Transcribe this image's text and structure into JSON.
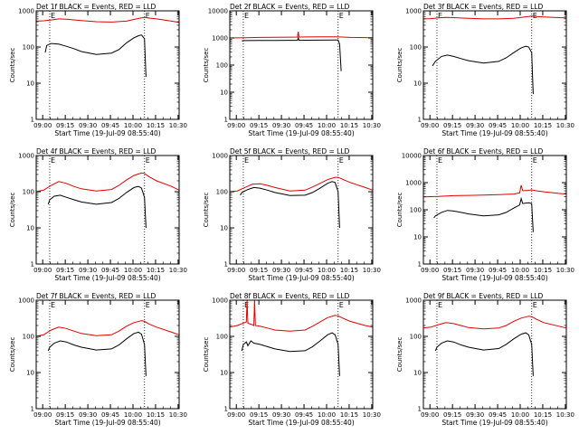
{
  "figure": {
    "start_time_label": "Start Time (19-Jul-09 08:55:40)",
    "ylabel": "Counts/sec",
    "marker": "E"
  },
  "colors": {
    "events": "#000000",
    "lld": "#e00000",
    "axis": "#000000"
  },
  "chart_data": [
    {
      "type": "line",
      "title": "Det 1f BLACK = Events, RED = LLD",
      "xlabel": "Start Time (19-Jul-09 08:55:40)",
      "ylabel": "Counts/sec",
      "xticks": [
        "09:00",
        "09:15",
        "09:30",
        "09:45",
        "10:00",
        "10:15",
        "10:30"
      ],
      "xlim_minutes": [
        0,
        95
      ],
      "yscale": "log",
      "ylim": [
        1,
        1000
      ],
      "yticks": [
        "1",
        "10",
        "100",
        "1000"
      ],
      "event_markers_minutes": [
        9,
        72
      ],
      "series": [
        {
          "name": "Events",
          "color": "#000000",
          "x": [
            6,
            7,
            10,
            15,
            20,
            25,
            30,
            40,
            50,
            55,
            60,
            65,
            68,
            70,
            72,
            73
          ],
          "y": [
            70,
            110,
            125,
            120,
            105,
            90,
            75,
            62,
            68,
            85,
            130,
            180,
            205,
            215,
            170,
            15
          ]
        },
        {
          "name": "LLD",
          "color": "#e00000",
          "x": [
            0,
            5,
            10,
            15,
            20,
            30,
            40,
            50,
            60,
            65,
            70,
            72,
            75,
            80,
            90,
            95
          ],
          "y": [
            520,
            530,
            560,
            600,
            590,
            540,
            500,
            490,
            520,
            580,
            640,
            660,
            630,
            600,
            520,
            480
          ]
        }
      ]
    },
    {
      "type": "line",
      "title": "Det 2f BLACK = Events, RED = LLD",
      "xlabel": "Start Time (19-Jul-09 08:55:40)",
      "ylabel": "Counts/sec",
      "xticks": [
        "09:00",
        "09:15",
        "09:30",
        "09:45",
        "10:00",
        "10:15",
        "10:30"
      ],
      "xlim_minutes": [
        0,
        95
      ],
      "yscale": "log",
      "ylim": [
        1,
        10000
      ],
      "yticks": [
        "1",
        "10",
        "100",
        "1000",
        "10000"
      ],
      "event_markers_minutes": [
        9,
        72
      ],
      "series": [
        {
          "name": "Events",
          "color": "#000000",
          "x": [
            8,
            9,
            20,
            30,
            40,
            45,
            45.5,
            46,
            50,
            60,
            70,
            72,
            73,
            74
          ],
          "y": [
            780,
            800,
            810,
            815,
            820,
            820,
            1000,
            820,
            825,
            830,
            840,
            840,
            600,
            60
          ]
        },
        {
          "name": "LLD",
          "color": "#e00000",
          "x": [
            0,
            10,
            20,
            30,
            40,
            45,
            45.5,
            46,
            50,
            60,
            70,
            75,
            80,
            90,
            95
          ],
          "y": [
            1000,
            1020,
            1050,
            1060,
            1070,
            1080,
            1700,
            1080,
            1090,
            1100,
            1100,
            1080,
            1050,
            1030,
            1020
          ]
        }
      ]
    },
    {
      "type": "line",
      "title": "Det 3f BLACK = Events, RED = LLD",
      "xlabel": "Start Time (19-Jul-09 08:55:40)",
      "ylabel": "Counts/sec",
      "xticks": [
        "09:00",
        "09:15",
        "09:30",
        "09:45",
        "10:00",
        "10:15",
        "10:30"
      ],
      "xlim_minutes": [
        0,
        95
      ],
      "yscale": "log",
      "ylim": [
        1,
        1000
      ],
      "yticks": [
        "1",
        "10",
        "100",
        "1000"
      ],
      "event_markers_minutes": [
        9,
        72
      ],
      "series": [
        {
          "name": "Events",
          "color": "#000000",
          "x": [
            6,
            8,
            12,
            16,
            20,
            25,
            30,
            40,
            50,
            55,
            60,
            65,
            68,
            70,
            72,
            73
          ],
          "y": [
            30,
            40,
            55,
            60,
            55,
            48,
            42,
            36,
            40,
            50,
            70,
            95,
            105,
            100,
            70,
            5
          ]
        },
        {
          "name": "LLD",
          "color": "#e00000",
          "x": [
            0,
            5,
            10,
            15,
            20,
            30,
            40,
            50,
            60,
            65,
            70,
            72,
            75,
            80,
            90,
            95
          ],
          "y": [
            600,
            610,
            640,
            660,
            650,
            620,
            600,
            600,
            620,
            660,
            700,
            720,
            700,
            680,
            650,
            640
          ]
        }
      ]
    },
    {
      "type": "line",
      "title": "Det 4f BLACK = Events, RED = LLD",
      "xlabel": "Start Time (19-Jul-09 08:55:40)",
      "ylabel": "Counts/sec",
      "xticks": [
        "09:00",
        "09:15",
        "09:30",
        "09:45",
        "10:00",
        "10:15",
        "10:30"
      ],
      "xlim_minutes": [
        0,
        95
      ],
      "yscale": "log",
      "ylim": [
        1,
        1000
      ],
      "yticks": [
        "1",
        "10",
        "100",
        "1000"
      ],
      "event_markers_minutes": [
        9,
        72
      ],
      "series": [
        {
          "name": "Events",
          "color": "#000000",
          "x": [
            8,
            9,
            12,
            16,
            20,
            25,
            30,
            40,
            50,
            55,
            60,
            65,
            68,
            70,
            72,
            73
          ],
          "y": [
            45,
            60,
            75,
            80,
            70,
            60,
            52,
            45,
            50,
            65,
            95,
            130,
            140,
            125,
            70,
            10
          ]
        },
        {
          "name": "LLD",
          "color": "#e00000",
          "x": [
            0,
            5,
            10,
            15,
            20,
            25,
            30,
            40,
            50,
            55,
            60,
            65,
            70,
            72,
            75,
            80,
            90,
            95
          ],
          "y": [
            100,
            110,
            150,
            190,
            170,
            140,
            120,
            105,
            115,
            150,
            210,
            280,
            330,
            320,
            260,
            200,
            140,
            110
          ]
        }
      ]
    },
    {
      "type": "line",
      "title": "Det 5f BLACK = Events, RED = LLD",
      "xlabel": "Start Time (19-Jul-09 08:55:40)",
      "ylabel": "Counts/sec",
      "xticks": [
        "09:00",
        "09:15",
        "09:30",
        "09:45",
        "10:00",
        "10:15",
        "10:30"
      ],
      "xlim_minutes": [
        0,
        95
      ],
      "yscale": "log",
      "ylim": [
        1,
        1000
      ],
      "yticks": [
        "1",
        "10",
        "100",
        "1000"
      ],
      "event_markers_minutes": [
        9,
        72
      ],
      "series": [
        {
          "name": "Events",
          "color": "#000000",
          "x": [
            7,
            8,
            12,
            16,
            20,
            25,
            30,
            40,
            50,
            55,
            60,
            65,
            68,
            70,
            72,
            73
          ],
          "y": [
            80,
            95,
            115,
            130,
            125,
            110,
            95,
            78,
            80,
            95,
            125,
            170,
            190,
            180,
            100,
            10
          ]
        },
        {
          "name": "LLD",
          "color": "#e00000",
          "x": [
            0,
            5,
            10,
            15,
            20,
            25,
            30,
            40,
            50,
            55,
            60,
            65,
            70,
            72,
            75,
            80,
            90,
            95
          ],
          "y": [
            100,
            105,
            130,
            160,
            165,
            150,
            130,
            105,
            110,
            135,
            170,
            215,
            250,
            250,
            220,
            180,
            130,
            110
          ]
        }
      ]
    },
    {
      "type": "line",
      "title": "Det 6f BLACK = Events, RED = LLD",
      "xlabel": "Start Time (19-Jul-09 08:55:40)",
      "ylabel": "Counts/sec",
      "xticks": [
        "09:00",
        "09:15",
        "09:30",
        "09:45",
        "10:00",
        "10:15",
        "10:30"
      ],
      "xlim_minutes": [
        0,
        95
      ],
      "yscale": "log",
      "ylim": [
        1,
        10000
      ],
      "yticks": [
        "1",
        "10",
        "100",
        "1000",
        "10000"
      ],
      "event_markers_minutes": [
        9,
        72
      ],
      "series": [
        {
          "name": "Events",
          "color": "#000000",
          "x": [
            7,
            8,
            12,
            16,
            20,
            25,
            30,
            40,
            50,
            55,
            60,
            64,
            65,
            66,
            70,
            72,
            73
          ],
          "y": [
            50,
            60,
            80,
            95,
            90,
            80,
            70,
            60,
            65,
            80,
            115,
            150,
            260,
            170,
            180,
            170,
            15
          ]
        },
        {
          "name": "LLD",
          "color": "#e00000",
          "x": [
            0,
            10,
            20,
            30,
            40,
            50,
            60,
            64,
            65,
            66,
            70,
            72,
            75,
            80,
            90,
            95
          ],
          "y": [
            300,
            310,
            330,
            340,
            350,
            360,
            380,
            420,
            800,
            500,
            520,
            540,
            500,
            460,
            400,
            380
          ]
        }
      ]
    },
    {
      "type": "line",
      "title": "Det 7f BLACK = Events, RED = LLD",
      "xlabel": "Start Time (19-Jul-09 08:55:40)",
      "ylabel": "Counts/sec",
      "xticks": [
        "09:00",
        "09:15",
        "09:30",
        "09:45",
        "10:00",
        "10:15",
        "10:30"
      ],
      "xlim_minutes": [
        0,
        95
      ],
      "yscale": "log",
      "ylim": [
        1,
        1000
      ],
      "yticks": [
        "1",
        "10",
        "100",
        "1000"
      ],
      "event_markers_minutes": [
        9,
        72
      ],
      "series": [
        {
          "name": "Events",
          "color": "#000000",
          "x": [
            8,
            9,
            12,
            16,
            20,
            25,
            30,
            40,
            50,
            55,
            60,
            65,
            68,
            70,
            72,
            73
          ],
          "y": [
            40,
            50,
            65,
            75,
            70,
            58,
            50,
            42,
            45,
            58,
            85,
            120,
            130,
            115,
            60,
            8
          ]
        },
        {
          "name": "LLD",
          "color": "#e00000",
          "x": [
            0,
            5,
            10,
            15,
            20,
            25,
            30,
            40,
            50,
            55,
            60,
            65,
            70,
            72,
            75,
            80,
            90,
            95
          ],
          "y": [
            100,
            110,
            150,
            180,
            165,
            140,
            120,
            105,
            110,
            140,
            190,
            240,
            270,
            260,
            220,
            180,
            130,
            110
          ]
        }
      ]
    },
    {
      "type": "line",
      "title": "Det 8f BLACK = Events, RED = LLD",
      "xlabel": "Start Time (19-Jul-09 08:55:40)",
      "ylabel": "Counts/sec",
      "xticks": [
        "09:00",
        "09:15",
        "09:30",
        "09:45",
        "10:00",
        "10:15",
        "10:30"
      ],
      "xlim_minutes": [
        0,
        95
      ],
      "yscale": "log",
      "ylim": [
        1,
        1000
      ],
      "yticks": [
        "1",
        "10",
        "100",
        "1000"
      ],
      "event_markers_minutes": [
        9,
        72
      ],
      "series": [
        {
          "name": "Events",
          "color": "#000000",
          "x": [
            8,
            9,
            11,
            12,
            14,
            16,
            20,
            25,
            30,
            40,
            50,
            55,
            60,
            65,
            68,
            70,
            72,
            73
          ],
          "y": [
            40,
            60,
            70,
            55,
            75,
            65,
            60,
            52,
            45,
            38,
            40,
            52,
            75,
            110,
            125,
            110,
            60,
            8
          ]
        },
        {
          "name": "LLD",
          "color": "#e00000",
          "x": [
            0,
            5,
            10,
            11,
            11.5,
            12,
            15,
            16,
            16.5,
            17,
            20,
            25,
            30,
            40,
            50,
            55,
            60,
            65,
            70,
            72,
            75,
            80,
            90,
            95
          ],
          "y": [
            180,
            200,
            240,
            250,
            1000,
            230,
            210,
            200,
            1000,
            200,
            190,
            170,
            150,
            140,
            150,
            190,
            250,
            330,
            380,
            370,
            320,
            260,
            200,
            180
          ]
        }
      ]
    },
    {
      "type": "line",
      "title": "Det 9f BLACK = Events, RED = LLD",
      "xlabel": "Start Time (19-Jul-09 08:55:40)",
      "ylabel": "Counts/sec",
      "xticks": [
        "09:00",
        "09:15",
        "09:30",
        "09:45",
        "10:00",
        "10:15",
        "10:30"
      ],
      "xlim_minutes": [
        0,
        95
      ],
      "yscale": "log",
      "ylim": [
        1,
        1000
      ],
      "yticks": [
        "1",
        "10",
        "100",
        "1000"
      ],
      "event_markers_minutes": [
        9,
        72
      ],
      "series": [
        {
          "name": "Events",
          "color": "#000000",
          "x": [
            8,
            9,
            12,
            16,
            20,
            25,
            30,
            40,
            50,
            55,
            60,
            65,
            68,
            70,
            72,
            73
          ],
          "y": [
            40,
            50,
            65,
            75,
            70,
            58,
            50,
            42,
            46,
            60,
            85,
            115,
            125,
            110,
            60,
            8
          ]
        },
        {
          "name": "LLD",
          "color": "#e00000",
          "x": [
            0,
            5,
            10,
            15,
            20,
            25,
            30,
            40,
            50,
            55,
            60,
            65,
            70,
            72,
            75,
            80,
            90,
            95
          ],
          "y": [
            170,
            180,
            210,
            240,
            225,
            200,
            175,
            160,
            170,
            200,
            260,
            320,
            360,
            350,
            300,
            240,
            190,
            170
          ]
        }
      ]
    }
  ]
}
